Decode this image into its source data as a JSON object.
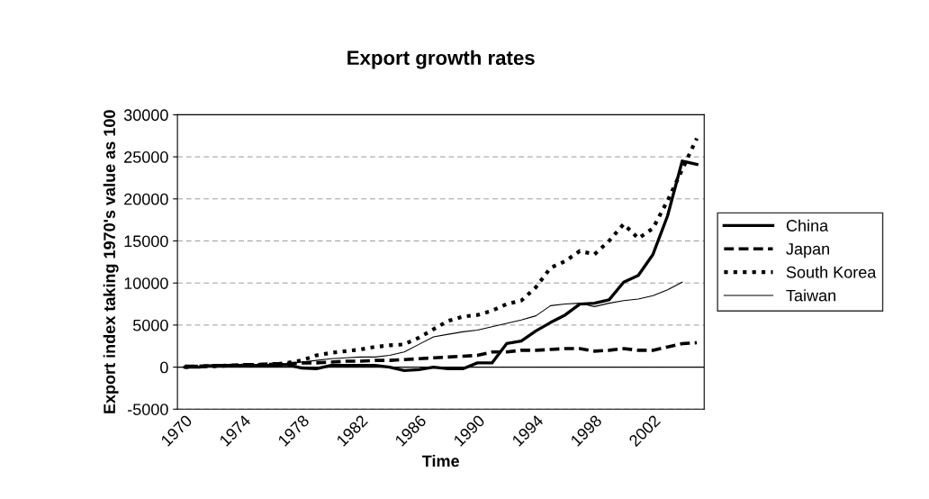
{
  "chart_data": {
    "type": "line",
    "title": "Export growth rates",
    "xlabel": "Time",
    "ylabel": "Export index taking 1970's value as 100",
    "categories": [
      "1970",
      null,
      null,
      null,
      "1974",
      null,
      null,
      null,
      "1978",
      null,
      null,
      null,
      "1982",
      null,
      null,
      null,
      "1986",
      null,
      null,
      null,
      "1990",
      null,
      null,
      null,
      "1994",
      null,
      null,
      null,
      "1998",
      null,
      null,
      null,
      "2002",
      null,
      null,
      null
    ],
    "series": [
      {
        "name": "China",
        "color": "#000000",
        "line_style": "solid",
        "values": [
          0,
          0,
          200,
          200,
          200,
          200,
          200,
          300,
          -100,
          -200,
          200,
          200,
          200,
          200,
          0,
          -400,
          -300,
          0,
          -200,
          -200,
          500,
          500,
          2800,
          3100,
          4300,
          5300,
          6200,
          7500,
          7600,
          8000,
          10100,
          10900,
          13400,
          18000,
          24500,
          24100
        ]
      },
      {
        "name": "Japan",
        "color": "#000000",
        "line_style": "dashed",
        "values": [
          100,
          100,
          200,
          200,
          300,
          300,
          400,
          400,
          500,
          500,
          600,
          700,
          700,
          800,
          800,
          900,
          1000,
          1100,
          1200,
          1300,
          1400,
          1800,
          1800,
          2000,
          2000,
          2100,
          2200,
          2200,
          1900,
          2000,
          2200,
          2000,
          2000,
          2400,
          2800,
          2900
        ]
      },
      {
        "name": "South Korea",
        "color": "#000000",
        "line_style": "dotted",
        "values": [
          0,
          100,
          100,
          200,
          200,
          300,
          300,
          500,
          800,
          1400,
          1700,
          1900,
          2100,
          2400,
          2600,
          2700,
          3500,
          4500,
          5500,
          6000,
          6200,
          6700,
          7500,
          7900,
          9500,
          11800,
          12600,
          13800,
          13400,
          15000,
          17000,
          15300,
          16500,
          19800,
          23500,
          27200
        ]
      },
      {
        "name": "Taiwan",
        "color": "#000000",
        "line_style": "solid",
        "values": [
          0,
          100,
          100,
          200,
          200,
          300,
          300,
          400,
          600,
          800,
          1000,
          1100,
          1200,
          1200,
          1400,
          1800,
          2700,
          3600,
          3900,
          4200,
          4400,
          4800,
          5200,
          5600,
          6100,
          7300,
          7500,
          7600,
          7200,
          7600,
          7900,
          8100,
          8500,
          9200,
          10100,
          null
        ]
      }
    ],
    "ylim": [
      -5000,
      30000
    ],
    "yticks": [
      -5000,
      0,
      5000,
      10000,
      15000,
      20000,
      25000,
      30000
    ],
    "grid": "y",
    "legend": "right"
  }
}
